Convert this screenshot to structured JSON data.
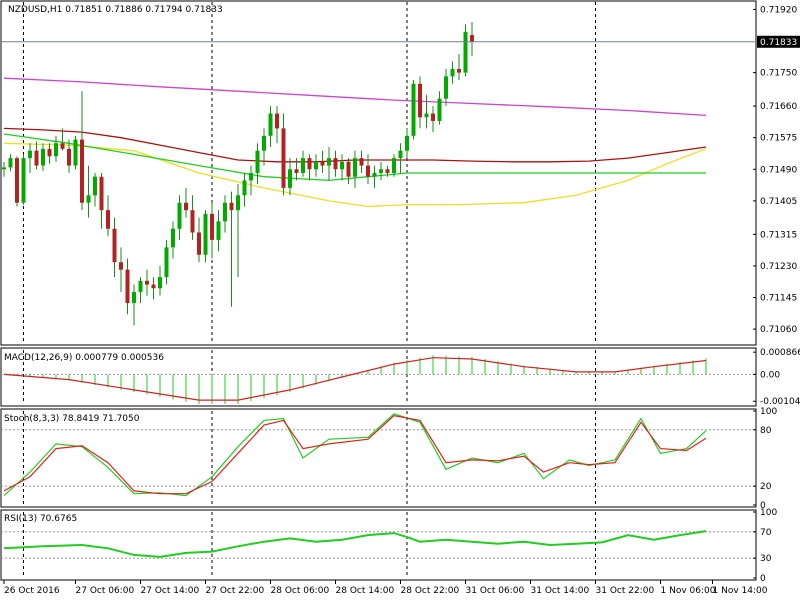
{
  "chart_data": {
    "type": "candlestick",
    "colors": {
      "background": "#ffffff",
      "axis": "#000000",
      "bull_candle": "#00aa00",
      "bear_candle": "#b22222",
      "wick": "#1a8c1a",
      "ma_magenta": "#cc44cc",
      "ma_darkred": "#aa1111",
      "ma_yellow": "#eedd22",
      "ma_green": "#22cc22",
      "macd_hist": "#22cc22",
      "macd_signal": "#cc2222",
      "stoch_main": "#22cc22",
      "stoch_signal": "#dd2222",
      "rsi": "#22cc22",
      "bid_line": "#708090"
    },
    "price_panel": {
      "header": "NZDUSD,H1  0.71851 0.71886 0.71794 0.71833",
      "current_price": "0.71833",
      "current_value": 0.71833,
      "ylim": [
        0.7102,
        0.7194
      ],
      "yticks": [
        {
          "label": "0.71920",
          "value": 0.7192
        },
        {
          "label": "0.71750",
          "value": 0.7175
        },
        {
          "label": "0.71660",
          "value": 0.7166
        },
        {
          "label": "0.71575",
          "value": 0.71575
        },
        {
          "label": "0.71490",
          "value": 0.7149
        },
        {
          "label": "0.71405",
          "value": 0.71405
        },
        {
          "label": "0.71315",
          "value": 0.71315
        },
        {
          "label": "0.71230",
          "value": 0.7123
        },
        {
          "label": "0.71145",
          "value": 0.71145
        },
        {
          "label": "0.71060",
          "value": 0.7106
        }
      ],
      "ma_magenta": [
        [
          0,
          0.71735
        ],
        [
          12,
          0.71725
        ],
        [
          24,
          0.71712
        ],
        [
          36,
          0.717
        ],
        [
          48,
          0.71688
        ],
        [
          60,
          0.71676
        ],
        [
          72,
          0.71667
        ],
        [
          84,
          0.71658
        ],
        [
          96,
          0.71648
        ],
        [
          108,
          0.71635
        ]
      ],
      "ma_darkred": [
        [
          0,
          0.716
        ],
        [
          6,
          0.71596
        ],
        [
          12,
          0.7159
        ],
        [
          18,
          0.71575
        ],
        [
          24,
          0.71555
        ],
        [
          30,
          0.71535
        ],
        [
          36,
          0.71515
        ],
        [
          42,
          0.7151
        ],
        [
          48,
          0.7151
        ],
        [
          54,
          0.71515
        ],
        [
          60,
          0.71515
        ],
        [
          66,
          0.71515
        ],
        [
          72,
          0.71512
        ],
        [
          78,
          0.7151
        ],
        [
          84,
          0.7151
        ],
        [
          90,
          0.71512
        ],
        [
          96,
          0.7152
        ],
        [
          102,
          0.71535
        ],
        [
          108,
          0.7155
        ]
      ],
      "ma_yellow": [
        [
          0,
          0.7156
        ],
        [
          10,
          0.71555
        ],
        [
          20,
          0.7154
        ],
        [
          30,
          0.7148
        ],
        [
          40,
          0.7144
        ],
        [
          50,
          0.71405
        ],
        [
          56,
          0.7139
        ],
        [
          62,
          0.71395
        ],
        [
          70,
          0.71395
        ],
        [
          80,
          0.714
        ],
        [
          88,
          0.7142
        ],
        [
          96,
          0.7146
        ],
        [
          102,
          0.71505
        ],
        [
          108,
          0.71545
        ]
      ],
      "ma_green": [
        [
          0,
          0.71585
        ],
        [
          10,
          0.7156
        ],
        [
          20,
          0.7153
        ],
        [
          30,
          0.715
        ],
        [
          40,
          0.7147
        ],
        [
          50,
          0.7146
        ],
        [
          56,
          0.7147
        ],
        [
          62,
          0.7148
        ],
        [
          70,
          0.7148
        ],
        [
          80,
          0.7148
        ],
        [
          90,
          0.7148
        ],
        [
          100,
          0.7148
        ],
        [
          108,
          0.7148
        ]
      ]
    },
    "x_labels": [
      {
        "label": "26 Oct 2016",
        "index": 0
      },
      {
        "label": "27 Oct 06:00",
        "index": 11
      },
      {
        "label": "27 Oct 14:00",
        "index": 21
      },
      {
        "label": "27 Oct 22:00",
        "index": 31
      },
      {
        "label": "28 Oct 06:00",
        "index": 41
      },
      {
        "label": "28 Oct 14:00",
        "index": 51
      },
      {
        "label": "28 Oct 22:00",
        "index": 61
      },
      {
        "label": "31 Oct 06:00",
        "index": 71
      },
      {
        "label": "31 Oct 14:00",
        "index": 81
      },
      {
        "label": "31 Oct 22:00",
        "index": 91
      },
      {
        "label": "1 Nov 06:00",
        "index": 101
      },
      {
        "label": "1 Nov 14:00",
        "index": 109
      }
    ],
    "separators": [
      3,
      32,
      62,
      91
    ],
    "macd_panel": {
      "header": "MACD(12,26,9) 0.000779 0.000536",
      "ylim": [
        -0.00115,
        0.00095
      ],
      "yticks": [
        {
          "label": "0.000866",
          "value": 0.000866
        },
        {
          "label": "0.00",
          "value": 0.0
        },
        {
          "label": "-0.001043",
          "value": -0.001043
        }
      ],
      "signal": [
        [
          0,
          0.0
        ],
        [
          10,
          -0.0002
        ],
        [
          20,
          -0.0006
        ],
        [
          30,
          -0.001
        ],
        [
          36,
          -0.001
        ],
        [
          44,
          -0.0006
        ],
        [
          52,
          -0.0001
        ],
        [
          60,
          0.0004
        ],
        [
          66,
          0.00065
        ],
        [
          72,
          0.0006
        ],
        [
          80,
          0.0003
        ],
        [
          88,
          0.0001
        ],
        [
          94,
          0.0001
        ],
        [
          100,
          0.0003
        ],
        [
          108,
          0.00054
        ]
      ]
    },
    "stoch_panel": {
      "header": "Stoch(8,3,3) 78.8419 71.7050",
      "ylim": [
        0,
        100
      ],
      "yticks": [
        {
          "label": "100",
          "value": 100
        },
        {
          "label": "80",
          "value": 80
        },
        {
          "label": "20",
          "value": 20
        },
        {
          "label": "0",
          "value": 0
        }
      ],
      "main": [
        [
          0,
          10
        ],
        [
          4,
          35
        ],
        [
          8,
          65
        ],
        [
          12,
          62
        ],
        [
          16,
          40
        ],
        [
          20,
          12
        ],
        [
          24,
          13
        ],
        [
          28,
          10
        ],
        [
          32,
          30
        ],
        [
          36,
          62
        ],
        [
          40,
          90
        ],
        [
          43,
          92
        ],
        [
          46,
          50
        ],
        [
          50,
          70
        ],
        [
          56,
          72
        ],
        [
          60,
          97
        ],
        [
          64,
          88
        ],
        [
          68,
          38
        ],
        [
          72,
          50
        ],
        [
          76,
          45
        ],
        [
          80,
          55
        ],
        [
          83,
          28
        ],
        [
          87,
          48
        ],
        [
          90,
          42
        ],
        [
          94,
          48
        ],
        [
          98,
          92
        ],
        [
          101,
          55
        ],
        [
          105,
          60
        ],
        [
          108,
          79
        ]
      ],
      "signal": [
        [
          0,
          15
        ],
        [
          4,
          30
        ],
        [
          8,
          60
        ],
        [
          12,
          63
        ],
        [
          16,
          45
        ],
        [
          20,
          15
        ],
        [
          24,
          12
        ],
        [
          28,
          12
        ],
        [
          32,
          25
        ],
        [
          36,
          55
        ],
        [
          40,
          85
        ],
        [
          43,
          90
        ],
        [
          46,
          60
        ],
        [
          50,
          65
        ],
        [
          56,
          70
        ],
        [
          60,
          95
        ],
        [
          64,
          90
        ],
        [
          68,
          45
        ],
        [
          72,
          48
        ],
        [
          76,
          47
        ],
        [
          80,
          52
        ],
        [
          83,
          35
        ],
        [
          87,
          45
        ],
        [
          90,
          43
        ],
        [
          94,
          45
        ],
        [
          98,
          88
        ],
        [
          101,
          60
        ],
        [
          105,
          58
        ],
        [
          108,
          71
        ]
      ]
    },
    "rsi_panel": {
      "header": "RSI(13) 70.6765",
      "ylim": [
        0,
        100
      ],
      "yticks": [
        {
          "label": "100",
          "value": 100
        },
        {
          "label": "70",
          "value": 70
        },
        {
          "label": "30",
          "value": 30
        },
        {
          "label": "0",
          "value": 0
        }
      ],
      "values": [
        [
          0,
          45
        ],
        [
          6,
          48
        ],
        [
          12,
          50
        ],
        [
          16,
          45
        ],
        [
          20,
          35
        ],
        [
          24,
          32
        ],
        [
          28,
          38
        ],
        [
          32,
          40
        ],
        [
          36,
          48
        ],
        [
          40,
          55
        ],
        [
          44,
          60
        ],
        [
          48,
          55
        ],
        [
          52,
          58
        ],
        [
          56,
          65
        ],
        [
          60,
          68
        ],
        [
          62,
          62
        ],
        [
          64,
          55
        ],
        [
          68,
          58
        ],
        [
          72,
          55
        ],
        [
          76,
          52
        ],
        [
          80,
          55
        ],
        [
          84,
          50
        ],
        [
          88,
          52
        ],
        [
          92,
          54
        ],
        [
          96,
          65
        ],
        [
          100,
          58
        ],
        [
          104,
          65
        ],
        [
          108,
          71
        ]
      ]
    },
    "candles": [
      [
        0.7149,
        0.7151,
        0.7147,
        0.71495
      ],
      [
        0.71495,
        0.7153,
        0.71485,
        0.7152
      ],
      [
        0.7152,
        0.71525,
        0.7139,
        0.714
      ],
      [
        0.714,
        0.7153,
        0.71395,
        0.7152
      ],
      [
        0.7152,
        0.7156,
        0.7148,
        0.7154
      ],
      [
        0.7154,
        0.71565,
        0.7149,
        0.715
      ],
      [
        0.715,
        0.7156,
        0.71485,
        0.71545
      ],
      [
        0.71545,
        0.7156,
        0.71505,
        0.71525
      ],
      [
        0.71525,
        0.7158,
        0.7151,
        0.7156
      ],
      [
        0.7156,
        0.716,
        0.7154,
        0.71545
      ],
      [
        0.71545,
        0.7157,
        0.7148,
        0.715
      ],
      [
        0.715,
        0.7158,
        0.7149,
        0.7157
      ],
      [
        0.7157,
        0.717,
        0.7138,
        0.714
      ],
      [
        0.714,
        0.715,
        0.7136,
        0.7142
      ],
      [
        0.7142,
        0.7148,
        0.7139,
        0.7147
      ],
      [
        0.7147,
        0.7148,
        0.7133,
        0.7138
      ],
      [
        0.7138,
        0.7142,
        0.7131,
        0.7133
      ],
      [
        0.7133,
        0.7136,
        0.712,
        0.7124
      ],
      [
        0.7124,
        0.7128,
        0.7116,
        0.7122
      ],
      [
        0.7122,
        0.7125,
        0.711,
        0.7113
      ],
      [
        0.7113,
        0.7118,
        0.7107,
        0.7116
      ],
      [
        0.7116,
        0.712,
        0.7113,
        0.7119
      ],
      [
        0.7119,
        0.7122,
        0.7115,
        0.7118
      ],
      [
        0.7118,
        0.712,
        0.7114,
        0.7117
      ],
      [
        0.7117,
        0.7123,
        0.7115,
        0.712
      ],
      [
        0.712,
        0.713,
        0.7118,
        0.7128
      ],
      [
        0.7128,
        0.7135,
        0.7125,
        0.7133
      ],
      [
        0.7133,
        0.7142,
        0.713,
        0.714
      ],
      [
        0.714,
        0.7144,
        0.7136,
        0.7138
      ],
      [
        0.7138,
        0.7142,
        0.713,
        0.7132
      ],
      [
        0.7132,
        0.7136,
        0.7124,
        0.7126
      ],
      [
        0.7126,
        0.7138,
        0.7124,
        0.7137
      ],
      [
        0.7137,
        0.714,
        0.7125,
        0.713
      ],
      [
        0.713,
        0.7138,
        0.7127,
        0.7135
      ],
      [
        0.7135,
        0.7142,
        0.7132,
        0.714
      ],
      [
        0.714,
        0.7143,
        0.7112,
        0.7138
      ],
      [
        0.7138,
        0.7145,
        0.712,
        0.7142
      ],
      [
        0.7142,
        0.7148,
        0.7139,
        0.7146
      ],
      [
        0.7146,
        0.715,
        0.7142,
        0.7148
      ],
      [
        0.7148,
        0.7156,
        0.7145,
        0.7154
      ],
      [
        0.7154,
        0.716,
        0.715,
        0.7158
      ],
      [
        0.7158,
        0.7166,
        0.7155,
        0.7164
      ],
      [
        0.7164,
        0.7166,
        0.7156,
        0.716
      ],
      [
        0.716,
        0.7164,
        0.7142,
        0.7144
      ],
      [
        0.7144,
        0.7152,
        0.7142,
        0.7149
      ],
      [
        0.7149,
        0.7152,
        0.7146,
        0.7148
      ],
      [
        0.7148,
        0.7154,
        0.7147,
        0.7152
      ],
      [
        0.7152,
        0.7153,
        0.7146,
        0.7149
      ],
      [
        0.7149,
        0.7153,
        0.7147,
        0.7151
      ],
      [
        0.7151,
        0.7154,
        0.7148,
        0.715
      ],
      [
        0.715,
        0.7155,
        0.7146,
        0.7152
      ],
      [
        0.7152,
        0.7154,
        0.7147,
        0.7149
      ],
      [
        0.7149,
        0.7153,
        0.7146,
        0.7151
      ],
      [
        0.7151,
        0.7152,
        0.7145,
        0.7147
      ],
      [
        0.7147,
        0.7154,
        0.7144,
        0.7152
      ],
      [
        0.7152,
        0.7154,
        0.7148,
        0.715
      ],
      [
        0.715,
        0.7153,
        0.7145,
        0.7147
      ],
      [
        0.7147,
        0.715,
        0.7144,
        0.7148
      ],
      [
        0.7148,
        0.7151,
        0.7146,
        0.7149
      ],
      [
        0.7149,
        0.715,
        0.7147,
        0.7148
      ],
      [
        0.7148,
        0.7153,
        0.7147,
        0.7152
      ],
      [
        0.7152,
        0.7156,
        0.7148,
        0.7154
      ],
      [
        0.7154,
        0.716,
        0.7152,
        0.7158
      ],
      [
        0.7158,
        0.7173,
        0.7157,
        0.7172
      ],
      [
        0.7172,
        0.7174,
        0.716,
        0.7163
      ],
      [
        0.7163,
        0.7169,
        0.716,
        0.7164
      ],
      [
        0.7164,
        0.7166,
        0.7159,
        0.7162
      ],
      [
        0.7162,
        0.717,
        0.7161,
        0.7168
      ],
      [
        0.7168,
        0.7176,
        0.7166,
        0.7174
      ],
      [
        0.7174,
        0.7178,
        0.7172,
        0.7176
      ],
      [
        0.7176,
        0.718,
        0.7173,
        0.7175
      ],
      [
        0.7175,
        0.7188,
        0.7174,
        0.7186
      ],
      [
        0.71851,
        0.71886,
        0.71794,
        0.71833
      ]
    ]
  }
}
